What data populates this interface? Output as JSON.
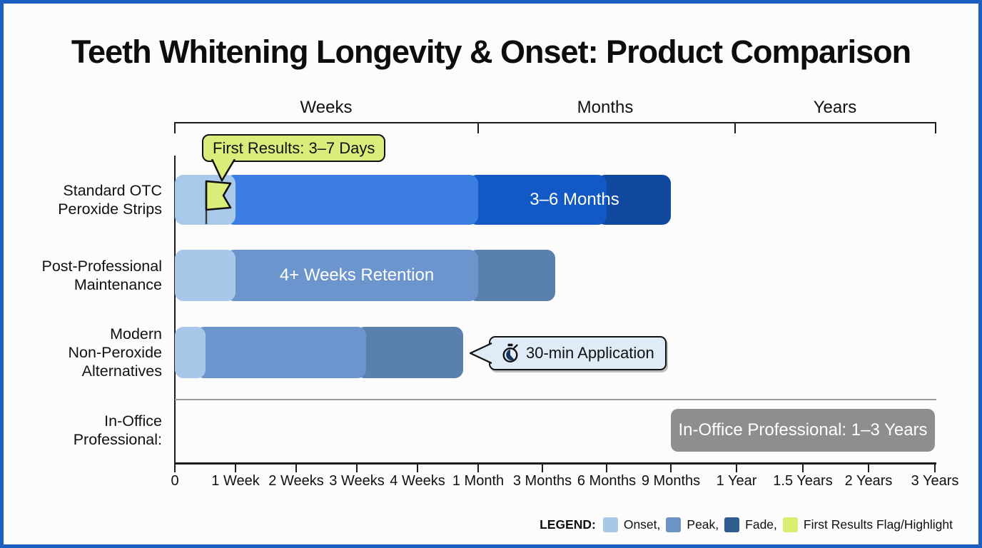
{
  "title": "Teeth Whitening Longevity & Onset: Product Comparison",
  "top_axis": {
    "sections": [
      {
        "label": "Weeks"
      },
      {
        "label": "Months"
      },
      {
        "label": "Years"
      }
    ]
  },
  "callouts": {
    "first_results": {
      "text": "First Results: 3–7 Days",
      "bg": "#d9ee7a"
    },
    "application": {
      "text": "30-min Application",
      "icon": "stopwatch-icon",
      "bg": "#e0ebf8"
    }
  },
  "legend": {
    "label": "LEGEND:",
    "items": [
      {
        "label": "Onset,",
        "color": "#a8c8e8"
      },
      {
        "label": "Peak,",
        "color": "#6b94c4"
      },
      {
        "label": "Fade,",
        "color": "#2f5d8f"
      },
      {
        "label": "First Results Flag/Highlight",
        "color": "#d9ed6e"
      }
    ]
  },
  "chart_data": {
    "type": "bar",
    "orientation": "horizontal-stacked-timeline",
    "title": "Teeth Whitening Longevity & Onset: Product Comparison",
    "axis_sections": [
      "Weeks",
      "Months",
      "Years"
    ],
    "x_tick_labels": [
      "0",
      "1 Week",
      "2 Weeks",
      "3 Weeks",
      "4 Weeks",
      "1 Month",
      "3 Months",
      "6 Months",
      "9 Months",
      "1 Year",
      "1.5 Years",
      "2 Years",
      "3 Years"
    ],
    "categories": [
      "Standard OTC Peroxide Strips",
      "Post-Professional Maintenance",
      "Modern Non-Peroxide Alternatives",
      "In-Office Professional:"
    ],
    "rows": [
      {
        "category": "Standard OTC Peroxide Strips",
        "label_lines": [
          "Standard OTC",
          "Peroxide Strips"
        ],
        "segments": [
          {
            "role": "onset",
            "from_tick": 0,
            "to_tick": 1,
            "color": "#a9c9ea"
          },
          {
            "role": "peak",
            "from_tick": 1,
            "to_tick": 5,
            "color": "#3b7de0"
          },
          {
            "role": "fade",
            "from_tick": 5,
            "to_tick": 7,
            "color": "#1259c6"
          },
          {
            "role": "fade-deep",
            "from_tick": 7,
            "to_tick": 8,
            "color": "#11499e"
          }
        ],
        "bar_label": {
          "text": "3–6 Months",
          "from_tick": 5,
          "to_tick": 8
        },
        "annotations": [
          "first-results-flag",
          "first-results-callout"
        ]
      },
      {
        "category": "Post-Professional Maintenance",
        "label_lines": [
          "Post-Professional",
          "Maintenance"
        ],
        "segments": [
          {
            "role": "onset",
            "from_tick": 0,
            "to_tick": 1,
            "color": "#a9c7e9"
          },
          {
            "role": "peak",
            "from_tick": 1,
            "to_tick": 5,
            "color": "#6c95cd"
          },
          {
            "role": "fade",
            "from_tick": 5,
            "to_tick": 6.2,
            "color": "#5a80ae"
          }
        ],
        "bar_label": {
          "text": "4+ Weeks Retention",
          "from_tick": 1,
          "to_tick": 5
        }
      },
      {
        "category": "Modern Non-Peroxide Alternatives",
        "label_lines": [
          "Modern",
          "Non-Peroxide",
          "Alternatives"
        ],
        "segments": [
          {
            "role": "onset",
            "from_tick": 0,
            "to_tick": 0.5,
            "color": "#a9c7e9"
          },
          {
            "role": "peak",
            "from_tick": 0.5,
            "to_tick": 3.15,
            "color": "#6c95cd"
          },
          {
            "role": "fade",
            "from_tick": 3.15,
            "to_tick": 4.75,
            "color": "#5a80ae"
          }
        ],
        "annotations": [
          "application-callout"
        ]
      },
      {
        "category": "In-Office Professional:",
        "label_lines": [
          "In-Office",
          "Professional:"
        ],
        "summary_bar": {
          "label": "In-Office Professional: 1–3 Years",
          "from_tick": 8,
          "to_tick": 12,
          "color": "#8e8e8e"
        }
      }
    ]
  }
}
